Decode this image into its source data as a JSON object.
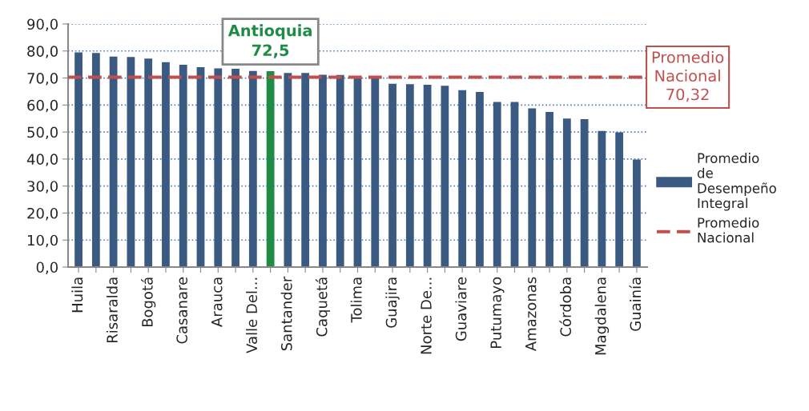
{
  "chart_data": {
    "type": "bar",
    "categories": [
      "Huila",
      null,
      "Risaralda",
      null,
      "Bogotá",
      null,
      "Casanare",
      null,
      "Arauca",
      null,
      "Valle Del...",
      null,
      "Santander",
      null,
      "Caquetá",
      null,
      "Tolima",
      null,
      "Guajira",
      null,
      "Norte De...",
      null,
      "Guaviare",
      null,
      "Putumayo",
      null,
      "Amazonas",
      null,
      "Córdoba",
      null,
      "Magdalena",
      null,
      "Guainía"
    ],
    "series": [
      {
        "name": "Promedio de Desempeño Integral",
        "color": "#3b5a82",
        "colors": [
          "#3b5a82",
          "#3b5a82",
          "#3b5a82",
          "#3b5a82",
          "#3b5a82",
          "#3b5a82",
          "#3b5a82",
          "#3b5a82",
          "#3b5a82",
          "#3b5a82",
          "#3b5a82",
          "#1e8c45",
          "#3b5a82",
          "#3b5a82",
          "#3b5a82",
          "#3b5a82",
          "#3b5a82",
          "#3b5a82",
          "#3b5a82",
          "#3b5a82",
          "#3b5a82",
          "#3b5a82",
          "#3b5a82",
          "#3b5a82",
          "#3b5a82",
          "#3b5a82",
          "#3b5a82",
          "#3b5a82",
          "#3b5a82",
          "#3b5a82",
          "#3b5a82",
          "#3b5a82",
          "#3b5a82"
        ],
        "values": [
          79.5,
          79.3,
          77.9,
          77.8,
          77.2,
          75.9,
          74.9,
          74.0,
          73.6,
          73.4,
          72.6,
          72.5,
          71.9,
          71.9,
          71.2,
          71.1,
          70.3,
          70.2,
          67.9,
          67.7,
          67.5,
          67.1,
          65.5,
          64.8,
          61.1,
          61.1,
          58.8,
          57.4,
          55.0,
          54.8,
          50.4,
          49.9,
          39.8
        ]
      }
    ],
    "ref_lines": [
      {
        "axis": "y",
        "value": 70.32,
        "label": "Promedio Nacional",
        "color": "#c0504d",
        "line_style": "dashed"
      }
    ],
    "annotations": [
      {
        "text": "Antioquia\n72,5",
        "y": 72.5
      },
      "Promedio\nNacional\n70,32"
    ],
    "ylim": [
      0,
      90
    ],
    "yticks": [
      {
        "value": 0,
        "label": "0,0"
      },
      {
        "value": 10,
        "label": "10,0"
      },
      {
        "value": 20,
        "label": "20,0"
      },
      {
        "value": 30,
        "label": "30,0"
      },
      {
        "value": 40,
        "label": "40,0"
      },
      {
        "value": 50,
        "label": "50,0"
      },
      {
        "value": 60,
        "label": "60,0"
      },
      {
        "value": 70,
        "label": "70,0"
      },
      {
        "value": 80,
        "label": "80,0"
      },
      {
        "value": 90,
        "label": "90,0"
      }
    ],
    "grid": "y",
    "legend": "right"
  }
}
